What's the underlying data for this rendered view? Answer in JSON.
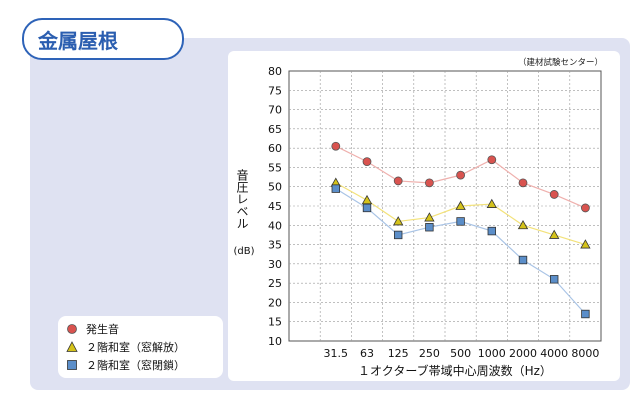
{
  "page": {
    "title": "金属屋根",
    "source": "（建材試験センター）"
  },
  "legend": {
    "items": [
      {
        "label": "発生音",
        "marker": "circle",
        "color": "#d9534f"
      },
      {
        "label": "２階和室（窓解放）",
        "marker": "triangle",
        "color": "#d4c21a"
      },
      {
        "label": "２階和室（窓閉鎖）",
        "marker": "square",
        "color": "#5b8ec9"
      }
    ]
  },
  "chart_data": {
    "type": "line",
    "categories": [
      "31.5",
      "63",
      "125",
      "250",
      "500",
      "1000",
      "2000",
      "4000",
      "8000"
    ],
    "series": [
      {
        "name": "発生音",
        "values": [
          60.5,
          56.5,
          51.5,
          51,
          53,
          57,
          51,
          48,
          44.5
        ],
        "marker": "circle",
        "marker_color": "#d9534f",
        "line_color": "#efb0ad"
      },
      {
        "name": "２階和室（窓解放）",
        "values": [
          51,
          46.5,
          41,
          42,
          45,
          45.5,
          40,
          37.5,
          35
        ],
        "marker": "triangle",
        "marker_color": "#d4c21a",
        "line_color": "#f3e27a"
      },
      {
        "name": "２階和室（窓閉鎖）",
        "values": [
          49.5,
          44.5,
          37.5,
          39.5,
          41,
          38.5,
          31,
          26,
          17
        ],
        "marker": "square",
        "marker_color": "#5b8ec9",
        "line_color": "#a9c4e6"
      }
    ],
    "ylabel": "音圧レベル",
    "yunit": "(dB)",
    "xlabel": "１オクターブ帯域中心周波数（Hz）",
    "ylim": [
      10,
      80
    ],
    "yticks": [
      "80",
      "75",
      "70",
      "65",
      "60",
      "55",
      "50",
      "45",
      "40",
      "35",
      "30",
      "25",
      "20",
      "15",
      "10"
    ],
    "grid": true
  }
}
